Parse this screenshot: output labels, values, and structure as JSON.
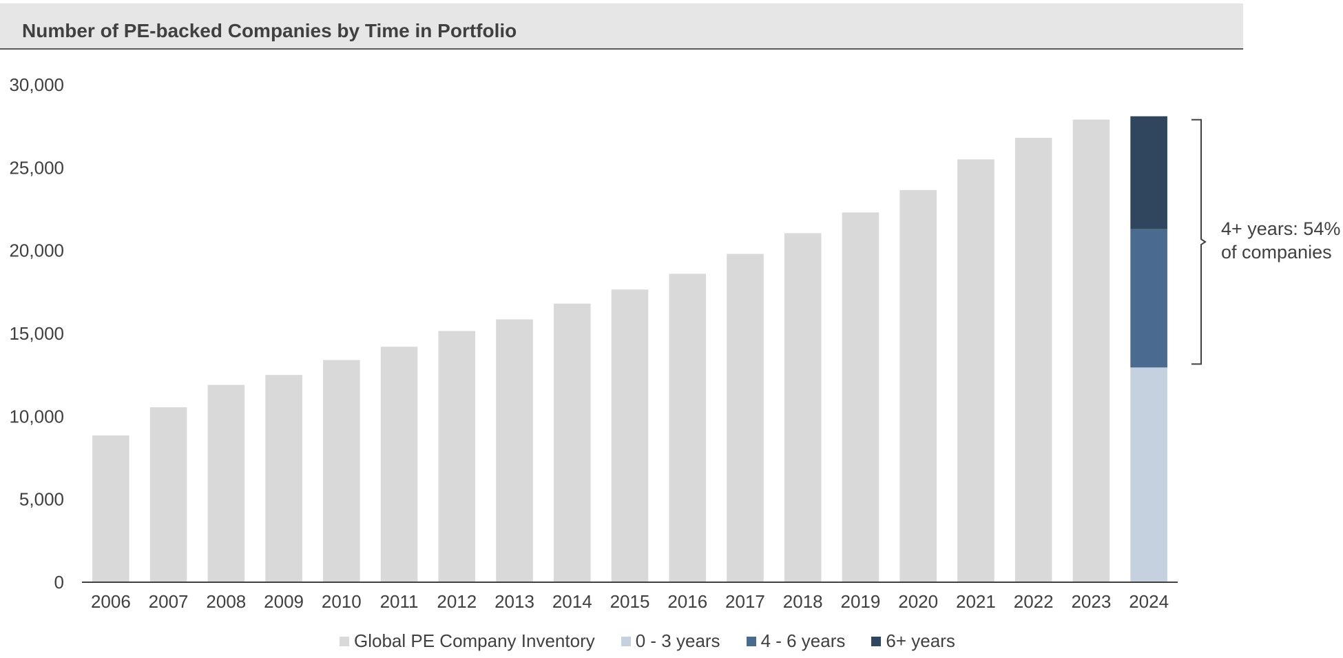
{
  "chart_data": {
    "type": "bar",
    "title": "Number of PE-backed Companies by Time in Portfolio",
    "categories": [
      "2006",
      "2007",
      "2008",
      "2009",
      "2010",
      "2011",
      "2012",
      "2013",
      "2014",
      "2015",
      "2016",
      "2017",
      "2018",
      "2019",
      "2020",
      "2021",
      "2022",
      "2023",
      "2024"
    ],
    "series": [
      {
        "name": "Global PE Company Inventory",
        "color": "#d9d9d9",
        "values": [
          8850,
          10550,
          11900,
          12500,
          13400,
          14200,
          15150,
          15850,
          16800,
          17650,
          18600,
          19800,
          21050,
          22300,
          23650,
          25500,
          26800,
          27900,
          null
        ]
      },
      {
        "name": "0 - 3 years",
        "color": "#c6d1e0",
        "values": [
          null,
          null,
          null,
          null,
          null,
          null,
          null,
          null,
          null,
          null,
          null,
          null,
          null,
          null,
          null,
          null,
          null,
          null,
          12950
        ]
      },
      {
        "name": "4 - 6 years",
        "color": "#4a6a8f",
        "values": [
          null,
          null,
          null,
          null,
          null,
          null,
          null,
          null,
          null,
          null,
          null,
          null,
          null,
          null,
          null,
          null,
          null,
          null,
          8350
        ]
      },
      {
        "name": "6+ years",
        "color": "#30465f",
        "values": [
          null,
          null,
          null,
          null,
          null,
          null,
          null,
          null,
          null,
          null,
          null,
          null,
          null,
          null,
          null,
          null,
          null,
          null,
          6800
        ]
      }
    ],
    "ylim": [
      0,
      30000
    ],
    "yticks": [
      0,
      5000,
      10000,
      15000,
      20000,
      25000,
      30000
    ],
    "ytick_labels": [
      "0",
      "5,000",
      "10,000",
      "15,000",
      "20,000",
      "25,000",
      "30,000"
    ],
    "grid": false,
    "legend_position": "bottom",
    "annotation": {
      "line1": "4+ years: 54%",
      "line2": "of companies"
    }
  }
}
